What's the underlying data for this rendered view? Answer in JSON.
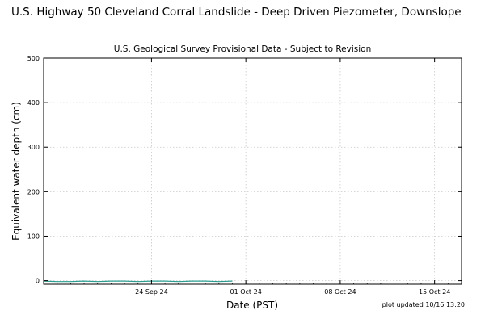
{
  "header": {
    "title": "U.S. Highway 50 Cleveland Corral Landslide - Deep Driven Piezometer, Downslope",
    "subtitle": "U.S. Geological Survey Provisional Data - Subject to Revision",
    "footnote": "plot updated 10/16 13:20"
  },
  "chart_data": {
    "type": "line",
    "title": "U.S. Highway 50 Cleveland Corral Landslide - Deep Driven Piezometer, Downslope",
    "subtitle": "U.S. Geological Survey Provisional Data - Subject to Revision",
    "xlabel": "Date (PST)",
    "ylabel": "Equivalent water depth (cm)",
    "xlim": [
      "2024-09-16",
      "2024-10-17"
    ],
    "ylim": [
      -8,
      500
    ],
    "x_ticks": [
      {
        "date": "2024-09-24",
        "label": "24 Sep 24"
      },
      {
        "date": "2024-10-01",
        "label": "01 Oct 24"
      },
      {
        "date": "2024-10-08",
        "label": "08 Oct 24"
      },
      {
        "date": "2024-10-15",
        "label": "15 Oct 24"
      }
    ],
    "y_ticks": [
      0,
      100,
      200,
      300,
      400,
      500
    ],
    "grid": true,
    "series": [
      {
        "color": "#2a9d8f",
        "x": [
          "2024-09-16",
          "2024-09-17",
          "2024-09-18",
          "2024-09-19",
          "2024-09-20",
          "2024-09-21",
          "2024-09-22",
          "2024-09-23",
          "2024-09-24",
          "2024-09-25",
          "2024-09-26",
          "2024-09-27",
          "2024-09-28",
          "2024-09-29",
          "2024-09-30"
        ],
        "y": [
          -1,
          -2,
          -2,
          -1,
          -2,
          -1,
          -1,
          -2,
          -1,
          -1,
          -2,
          -1,
          -1,
          -2,
          -1
        ]
      }
    ]
  }
}
